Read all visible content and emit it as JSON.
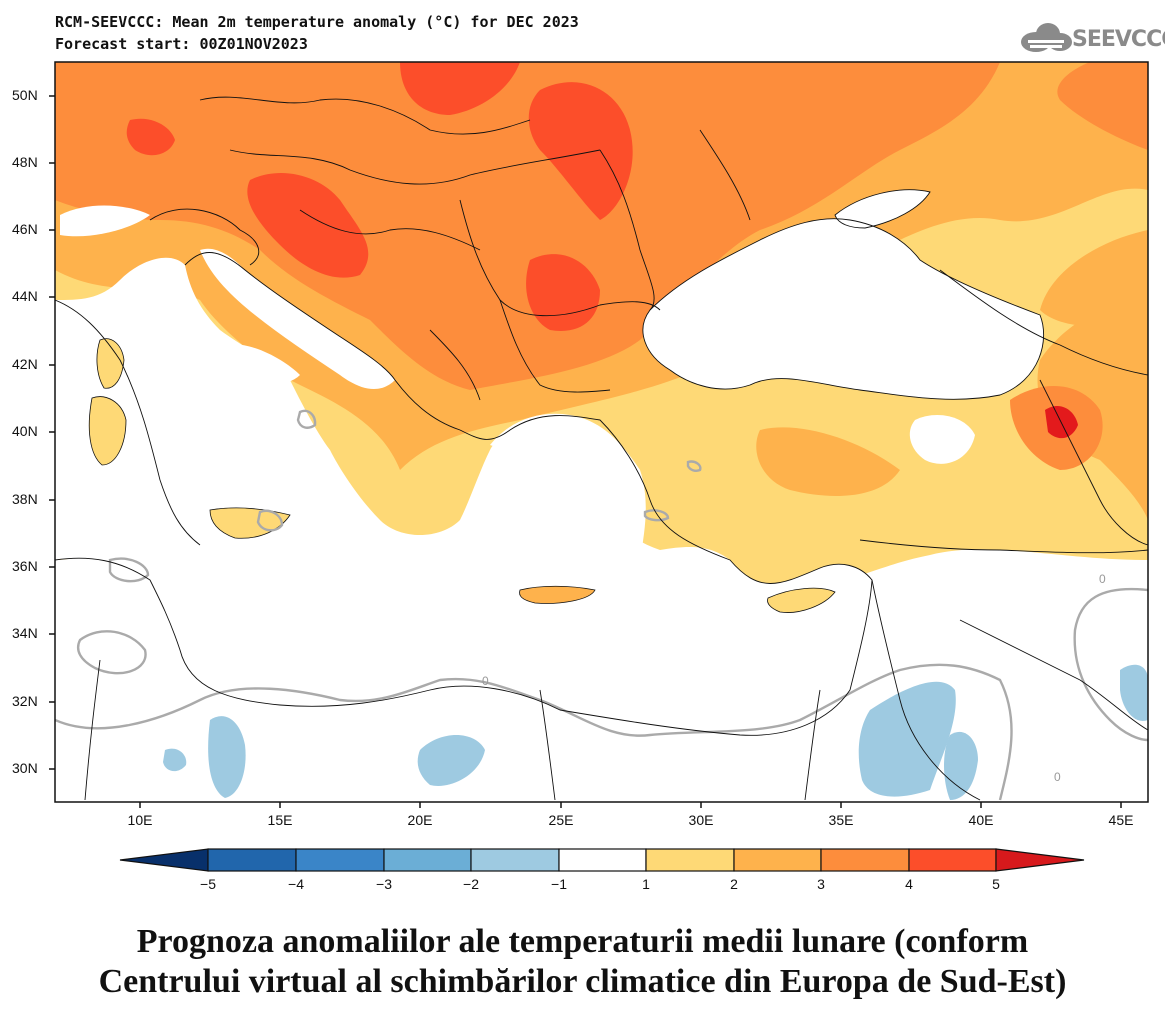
{
  "header": {
    "title": "RCM-SEEVCCC: Mean 2m temperature anomaly (°C) for DEC 2023",
    "subtitle": "Forecast start: 00Z01NOV2023",
    "logo_text": "SEEVCCC",
    "logo_icon": "cloud-icon"
  },
  "map": {
    "lon_range": [
      7,
      46
    ],
    "lat_range": [
      29,
      51
    ],
    "lat_labels": [
      "50N",
      "48N",
      "46N",
      "44N",
      "42N",
      "40N",
      "38N",
      "36N",
      "34N",
      "32N",
      "30N"
    ],
    "lon_labels": [
      "10E",
      "15E",
      "20E",
      "25E",
      "30E",
      "35E",
      "40E",
      "45E"
    ],
    "contour_label": "0"
  },
  "colorbar": {
    "labels": [
      "−5",
      "−4",
      "−3",
      "−2",
      "−1",
      "1",
      "2",
      "3",
      "4",
      "5"
    ],
    "colors": {
      "below_min": "#08306b",
      "bins": [
        "#2166ac",
        "#3a85c8",
        "#6baed6",
        "#9ecae1",
        "#ffffff",
        "#fed976",
        "#feb24c",
        "#fd8d3c",
        "#fc4e2a"
      ],
      "above_max": "#d7191c"
    }
  },
  "caption": {
    "line1": "Prognoza anomaliilor ale temperaturii medii lunare (conform",
    "line2": "Centrului virtual al schimbărilor climatice din Europa de Sud-Est)"
  }
}
